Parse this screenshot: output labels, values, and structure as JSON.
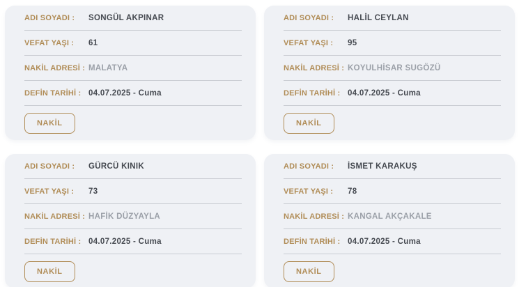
{
  "labels": {
    "name": "ADI SOYADI :",
    "age": "VEFAT YAŞI :",
    "address": "NAKİL ADRESİ :",
    "burial_date": "DEFİN TARİHİ :"
  },
  "button_label": "NAKİL",
  "colors": {
    "accent_gold": "#b08c56",
    "card_background": "#eff1f5",
    "value_dark": "#464a51",
    "value_muted": "#9ba0a8",
    "divider": "#c9ccd2",
    "page_background": "#ffffff"
  },
  "cards": [
    {
      "name": "SONGÜL AKPINAR",
      "age": "61",
      "address": "MALATYA",
      "burial_date": "04.07.2025 - Cuma"
    },
    {
      "name": "HALİL CEYLAN",
      "age": "95",
      "address": "KOYULHİSAR SUGÖZÜ",
      "burial_date": "04.07.2025 - Cuma"
    },
    {
      "name": "GÜRCÜ KINIK",
      "age": "73",
      "address": "HAFİK DÜZYAYLA",
      "burial_date": "04.07.2025 - Cuma"
    },
    {
      "name": "İSMET KARAKUŞ",
      "age": "78",
      "address": "KANGAL AKÇAKALE",
      "burial_date": "04.07.2025 - Cuma"
    }
  ]
}
